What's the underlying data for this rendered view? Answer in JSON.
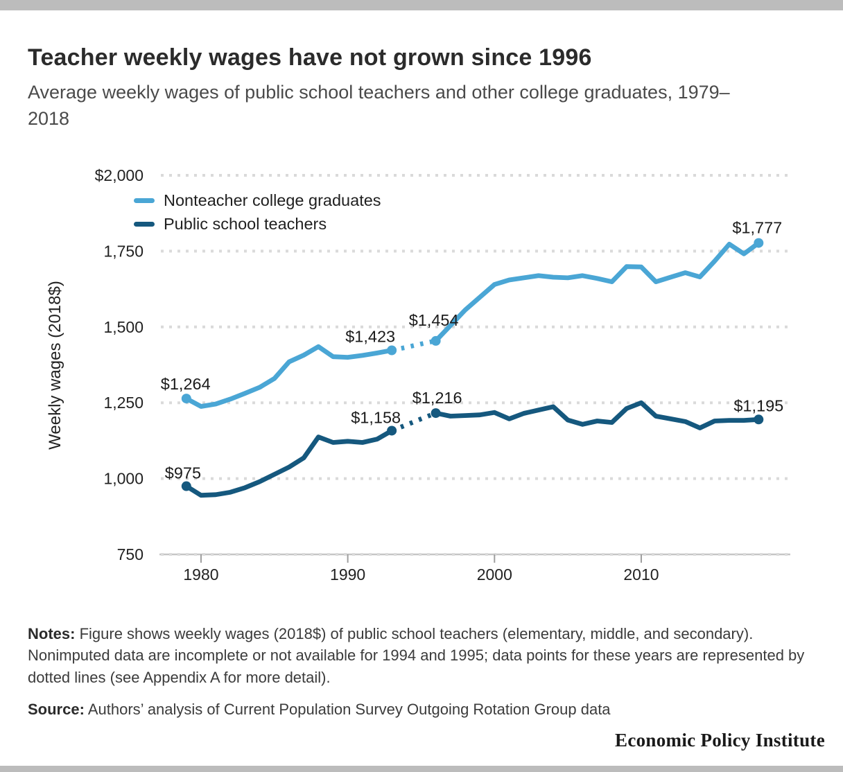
{
  "page": {
    "title": "Teacher weekly wages have not grown since 1996",
    "subtitle": "Average weekly wages of public school teachers and other college graduates, 1979–2018",
    "notes_label": "Notes:",
    "notes_text": " Figure shows weekly wages (2018$) of public school teachers (elementary, middle, and secondary). Nonimputed data are incomplete or not available for 1994 and 1995; data points for these years are represented by dotted lines (see Appendix A for more detail).",
    "source_label": "Source:",
    "source_text": " Authors’ analysis of Current Population Survey Outgoing Rotation Group data",
    "footer_brand": "Economic Policy Institute"
  },
  "chart_data": {
    "type": "line",
    "title": "Teacher weekly wages have not grown since 1996",
    "subtitle": "Average weekly wages of public school teachers and other college graduates, 1979–2018",
    "xlabel": "",
    "ylabel": "Weekly wages (2018$)",
    "ylim": [
      750,
      2000
    ],
    "grid": "horizontal dotted",
    "legend_position": "top-left inside plot",
    "dotted_note": "1994 and 1995 values shown with dotted lines (nonimputed data incomplete or unavailable)",
    "x": [
      1979,
      1980,
      1981,
      1982,
      1983,
      1984,
      1985,
      1986,
      1987,
      1988,
      1989,
      1990,
      1991,
      1992,
      1993,
      1994,
      1995,
      1996,
      1997,
      1998,
      1999,
      2000,
      2001,
      2002,
      2003,
      2004,
      2005,
      2006,
      2007,
      2008,
      2009,
      2010,
      2011,
      2012,
      2013,
      2014,
      2015,
      2016,
      2017,
      2018
    ],
    "x_ticks": [
      1980,
      1990,
      2000,
      2010
    ],
    "y_ticks": [
      {
        "label": "$2,000",
        "value": 2000
      },
      {
        "label": "1,750",
        "value": 1750
      },
      {
        "label": "1,500",
        "value": 1500
      },
      {
        "label": "1,250",
        "value": 1250
      },
      {
        "label": "1,000",
        "value": 1000
      },
      {
        "label": "750",
        "value": 750
      }
    ],
    "series": [
      {
        "name": "Nonteacher college graduates",
        "color": "#4aa6d5",
        "dotted_span": [
          1993,
          1996
        ],
        "values": [
          1264,
          1238,
          1246,
          1262,
          1281,
          1301,
          1330,
          1385,
          1407,
          1435,
          1402,
          1400,
          1406,
          1414,
          1423,
          1433,
          1444,
          1454,
          1505,
          1556,
          1598,
          1640,
          1655,
          1662,
          1669,
          1664,
          1662,
          1669,
          1660,
          1649,
          1699,
          1698,
          1649,
          1664,
          1679,
          1665,
          1717,
          1773,
          1741,
          1777
        ],
        "labeled_points": [
          {
            "year": 1979,
            "value": 1264,
            "label": "$1,264",
            "anchor": "start",
            "dx": -37,
            "dy": -13
          },
          {
            "year": 1993,
            "value": 1423,
            "label": "$1,423",
            "anchor": "end",
            "dx": 5,
            "dy": -12
          },
          {
            "year": 1996,
            "value": 1454,
            "label": "$1,454",
            "anchor": "middle",
            "dx": -3,
            "dy": -22
          },
          {
            "year": 2018,
            "value": 1777,
            "label": "$1,777",
            "anchor": "middle",
            "dx": -2,
            "dy": -14
          }
        ]
      },
      {
        "name": "Public school teachers",
        "color": "#15587e",
        "dotted_span": [
          1993,
          1996
        ],
        "values": [
          975,
          945,
          947,
          955,
          970,
          990,
          1014,
          1038,
          1068,
          1137,
          1119,
          1123,
          1119,
          1130,
          1158,
          1177,
          1197,
          1216,
          1206,
          1208,
          1210,
          1218,
          1197,
          1215,
          1226,
          1237,
          1193,
          1179,
          1190,
          1185,
          1231,
          1250,
          1206,
          1197,
          1188,
          1167,
          1190,
          1192,
          1192,
          1195
        ],
        "labeled_points": [
          {
            "year": 1979,
            "value": 975,
            "label": "$975",
            "anchor": "start",
            "dx": -31,
            "dy": -11
          },
          {
            "year": 1993,
            "value": 1158,
            "label": "$1,158",
            "anchor": "end",
            "dx": 13,
            "dy": -11
          },
          {
            "year": 1996,
            "value": 1216,
            "label": "$1,216",
            "anchor": "middle",
            "dx": 2,
            "dy": -14
          },
          {
            "year": 2018,
            "value": 1195,
            "label": "$1,195",
            "anchor": "middle",
            "dx": 0,
            "dy": -12
          }
        ]
      }
    ]
  }
}
